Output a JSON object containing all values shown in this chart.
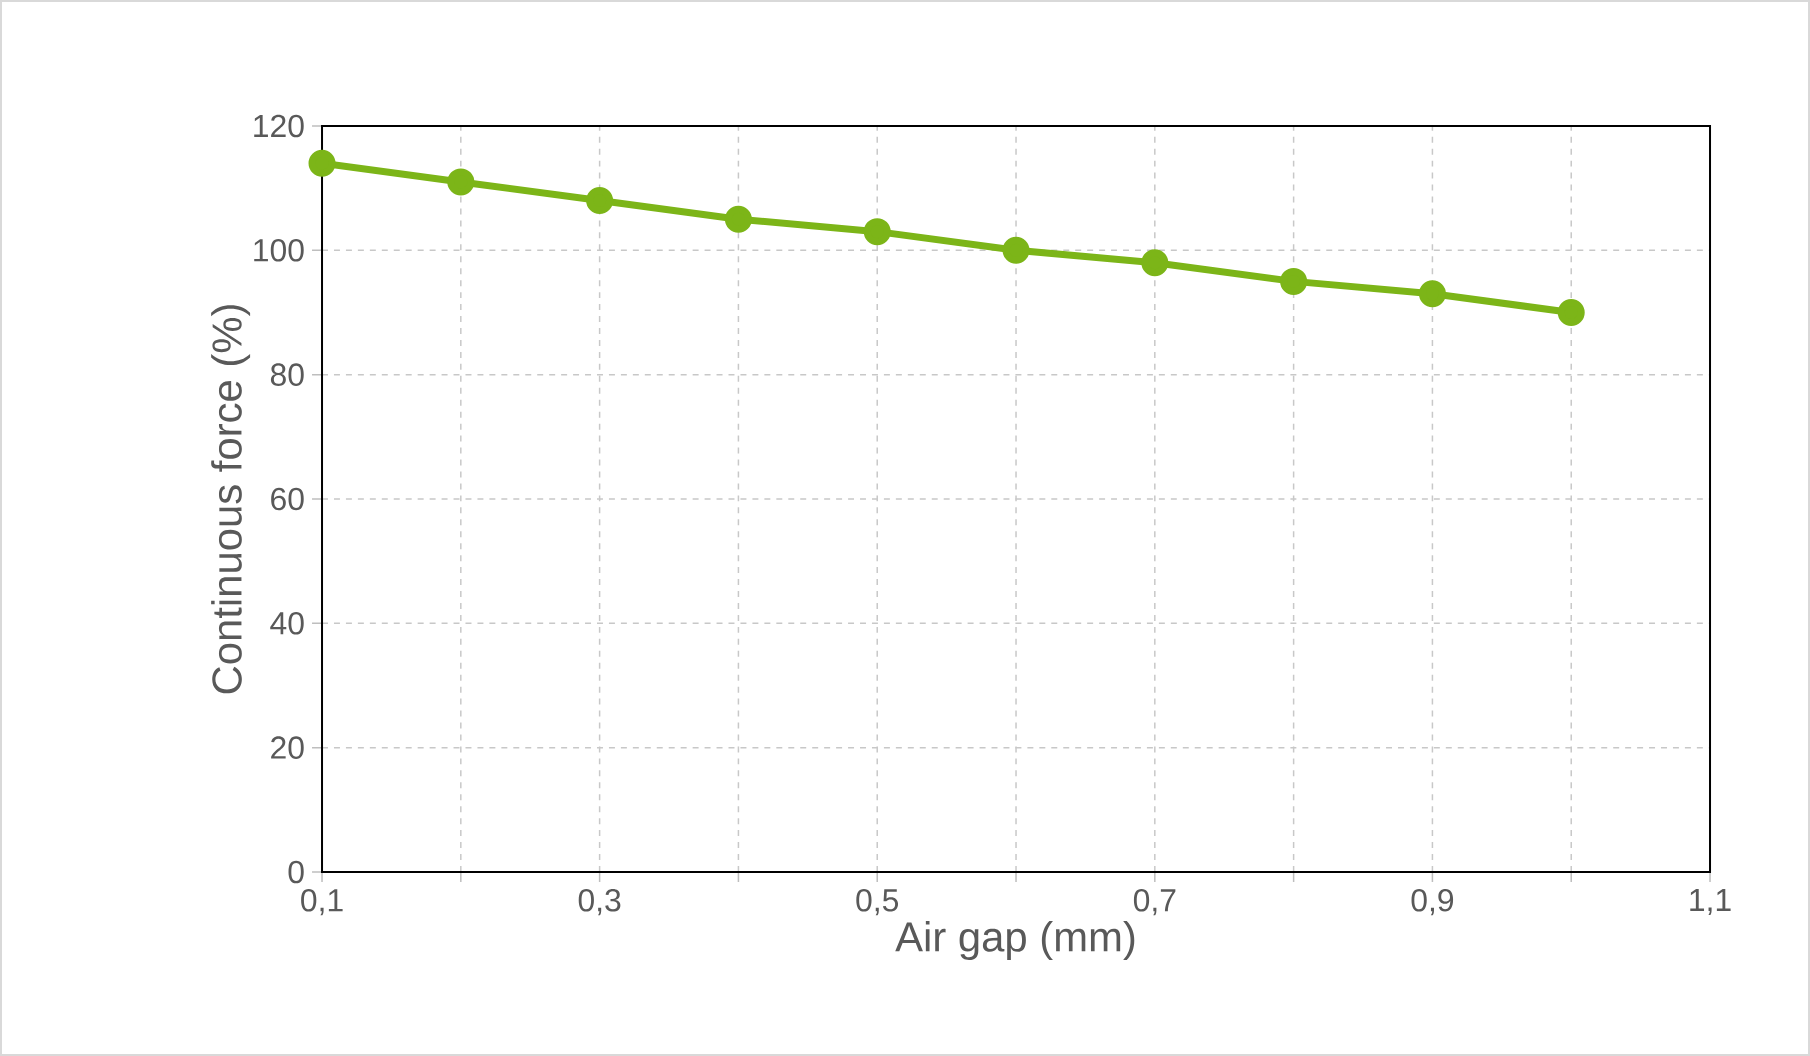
{
  "chart_data": {
    "type": "line",
    "xlabel": "Air gap (mm)",
    "ylabel": "Continuous force (%)",
    "x": [
      0.1,
      0.2,
      0.3,
      0.4,
      0.5,
      0.6,
      0.7,
      0.8,
      0.9,
      1.0
    ],
    "series": [
      {
        "color": "#7cb518",
        "values": [
          114,
          111,
          108,
          105,
          103,
          100,
          98,
          95,
          93,
          90
        ]
      }
    ],
    "xlim": [
      0.1,
      1.1
    ],
    "ylim": [
      0,
      120
    ],
    "xticks": [
      {
        "value": 0.1,
        "label": "0,1"
      },
      {
        "value": 0.2,
        "label": null
      },
      {
        "value": 0.3,
        "label": "0,3"
      },
      {
        "value": 0.4,
        "label": null
      },
      {
        "value": 0.5,
        "label": "0,5"
      },
      {
        "value": 0.6,
        "label": null
      },
      {
        "value": 0.7,
        "label": "0,7"
      },
      {
        "value": 0.8,
        "label": null
      },
      {
        "value": 0.9,
        "label": "0,9"
      },
      {
        "value": 1.0,
        "label": null
      },
      {
        "value": 1.1,
        "label": "1,1"
      }
    ],
    "yticks": [
      0,
      20,
      40,
      60,
      80,
      100,
      120
    ],
    "grid": true,
    "marker": "circle",
    "line_style": "solid"
  }
}
